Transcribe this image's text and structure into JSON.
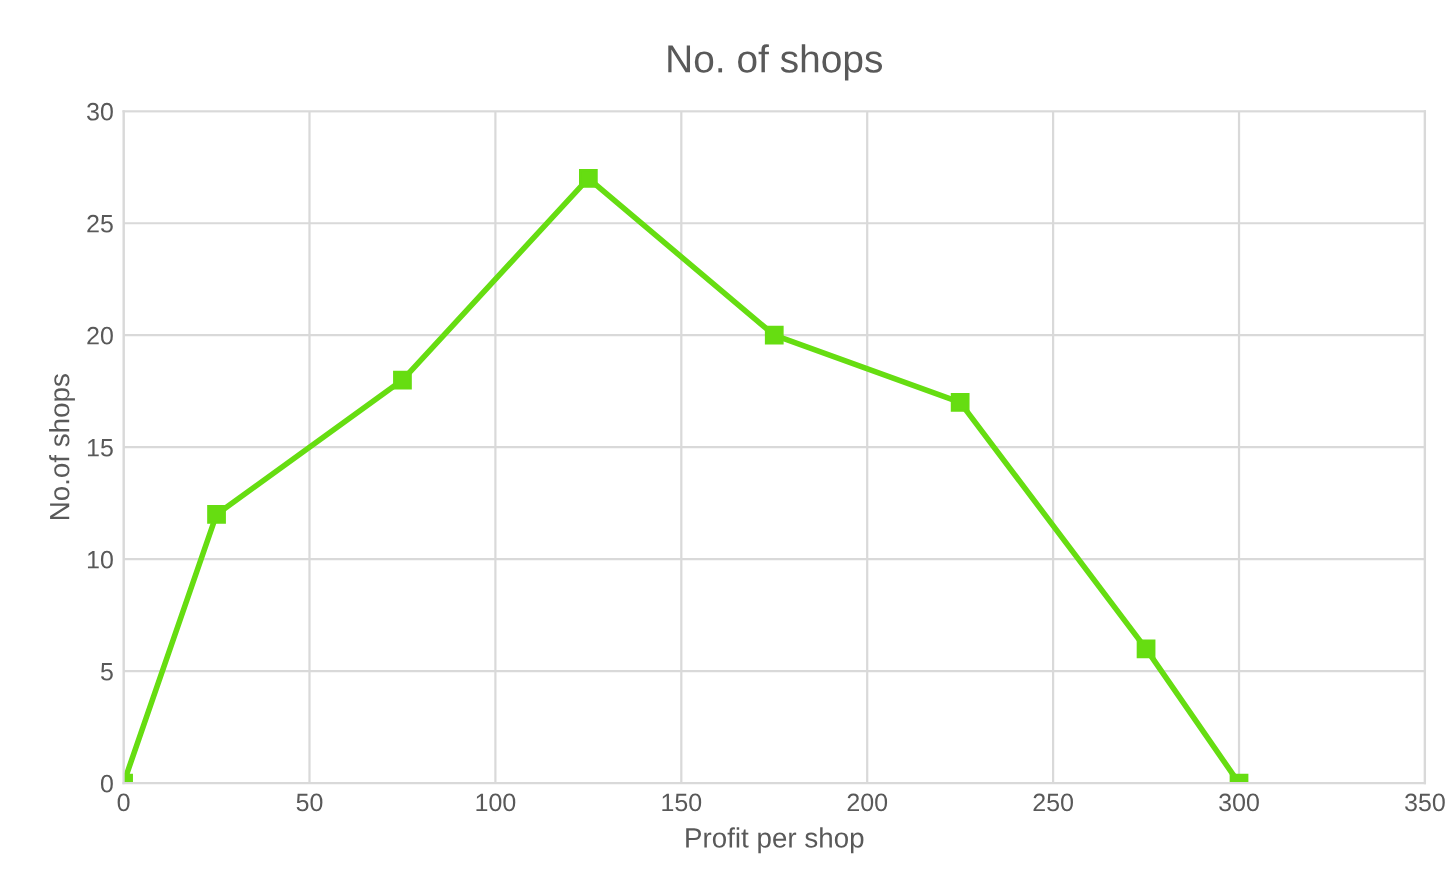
{
  "chart_data": {
    "type": "line",
    "title": "No. of shops",
    "xlabel": "Profit per shop",
    "ylabel": "No.of shops",
    "x": [
      0,
      25,
      75,
      125,
      175,
      225,
      275,
      300
    ],
    "series": [
      {
        "color": "#66dd11",
        "values": [
          0,
          12,
          18,
          27,
          20,
          17,
          6,
          0
        ]
      }
    ],
    "xlim": [
      0,
      350
    ],
    "xticks": [
      0,
      50,
      100,
      150,
      200,
      250,
      300,
      350
    ],
    "ylim": [
      0,
      30
    ],
    "yticks": [
      0,
      5,
      10,
      15,
      20,
      25,
      30
    ],
    "grid": true,
    "marker": "square",
    "line_style": "solid"
  }
}
